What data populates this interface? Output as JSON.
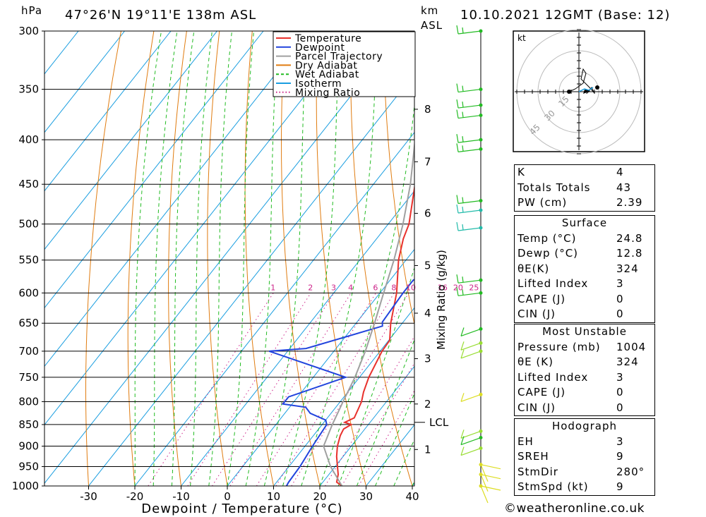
{
  "header": {
    "pressure_unit": "hPa",
    "location": "47°26'N  19°11'E  138m  ASL",
    "height_unit_line1": "km",
    "height_unit_line2": "ASL",
    "datetime": "10.10.2021  12GMT  (Base: 12)"
  },
  "axes": {
    "xlabel": "Dewpoint / Temperature (°C)",
    "mixing_axis_label": "Mixing Ratio (g/kg)",
    "x_ticks": [
      "-30",
      "-20",
      "-10",
      "0",
      "10",
      "20",
      "30",
      "40"
    ],
    "x_tick_values": [
      -30,
      -20,
      -10,
      0,
      10,
      20,
      30,
      40
    ],
    "p_ticks": [
      300,
      350,
      400,
      450,
      500,
      550,
      600,
      650,
      700,
      750,
      800,
      850,
      900,
      950,
      1000
    ],
    "km_ticks": [
      {
        "label": "8",
        "p": 369
      },
      {
        "label": "7",
        "p": 424
      },
      {
        "label": "6",
        "p": 486
      },
      {
        "label": "5",
        "p": 558
      },
      {
        "label": "4",
        "p": 633
      },
      {
        "label": "3",
        "p": 714
      },
      {
        "label": "2",
        "p": 805
      },
      {
        "label": "1",
        "p": 908
      }
    ],
    "lcl_label": "LCL",
    "lcl_p": 845,
    "mixing_ratio_labels": [
      "1",
      "2",
      "3",
      "4",
      "6",
      "8",
      "10",
      "16",
      "20",
      "25"
    ],
    "mixing_ratio_values": [
      1,
      2,
      3,
      4,
      6,
      8,
      10,
      16,
      20,
      25
    ]
  },
  "legend": {
    "items": [
      {
        "label": "Temperature",
        "color": "#e8312c",
        "style": "solid"
      },
      {
        "label": "Dewpoint",
        "color": "#2244dd",
        "style": "solid"
      },
      {
        "label": "Parcel Trajectory",
        "color": "#a0a0a0",
        "style": "solid"
      },
      {
        "label": "Dry Adiabat",
        "color": "#e07c10",
        "style": "solid"
      },
      {
        "label": "Wet Adiabat",
        "color": "#22bb22",
        "style": "dashed"
      },
      {
        "label": "Isotherm",
        "color": "#1a9ee0",
        "style": "solid"
      },
      {
        "label": "Mixing Ratio",
        "color": "#cc2288",
        "style": "dotted"
      }
    ]
  },
  "chart_data": {
    "type": "line",
    "title": "47°26'N  19°11'E  138m  ASL",
    "xlabel": "Dewpoint / Temperature (°C)",
    "ylabel": "hPa",
    "xlim": [
      -40,
      40
    ],
    "ylim": [
      1000,
      300
    ],
    "yscale": "log",
    "series": [
      {
        "name": "Temperature",
        "color": "#e8312c",
        "points": [
          [
            1000,
            24.8
          ],
          [
            990,
            23
          ],
          [
            970,
            22
          ],
          [
            950,
            20.5
          ],
          [
            925,
            18.6
          ],
          [
            900,
            17
          ],
          [
            875,
            15.8
          ],
          [
            860,
            15.4
          ],
          [
            850,
            16.3
          ],
          [
            845,
            14.5
          ],
          [
            835,
            15.8
          ],
          [
            800,
            14.6
          ],
          [
            780,
            13.4
          ],
          [
            750,
            12
          ],
          [
            700,
            10.4
          ],
          [
            680,
            10.2
          ],
          [
            650,
            7.5
          ],
          [
            600,
            3.6
          ],
          [
            550,
            -1.6
          ],
          [
            520,
            -4.2
          ],
          [
            500,
            -5.5
          ],
          [
            450,
            -11
          ],
          [
            400,
            -17.8
          ],
          [
            380,
            -20.5
          ],
          [
            350,
            -25
          ],
          [
            300,
            -33.5
          ]
        ]
      },
      {
        "name": "Dewpoint",
        "color": "#2244dd",
        "points": [
          [
            1000,
            12.8
          ],
          [
            990,
            12.6
          ],
          [
            950,
            12.4
          ],
          [
            900,
            11.6
          ],
          [
            850,
            11
          ],
          [
            840,
            10
          ],
          [
            825,
            5.5
          ],
          [
            812,
            3.5
          ],
          [
            805,
            -2
          ],
          [
            790,
            -2
          ],
          [
            750,
            7
          ],
          [
            700,
            -14
          ],
          [
            695,
            -6.5
          ],
          [
            655,
            6.2
          ],
          [
            648,
            5.5
          ],
          [
            600,
            5
          ],
          [
            580,
            5
          ],
          [
            555,
            8.5
          ],
          [
            535,
            9
          ],
          [
            522,
            1.5
          ],
          [
            510,
            5.5
          ],
          [
            500,
            3.8
          ],
          [
            475,
            2.5
          ],
          [
            470,
            2
          ],
          [
            465,
            -4.5
          ],
          [
            450,
            -5
          ],
          [
            430,
            -6
          ],
          [
            405,
            -3.3
          ],
          [
            395,
            -7
          ],
          [
            375,
            -8
          ],
          [
            360,
            -12
          ],
          [
            340,
            -12
          ],
          [
            320,
            -11
          ],
          [
            300,
            -17.5
          ]
        ]
      },
      {
        "name": "Parcel Trajectory",
        "color": "#a0a0a0",
        "points": [
          [
            1000,
            24.8
          ],
          [
            950,
            19
          ],
          [
            900,
            14
          ],
          [
            850,
            12.2
          ],
          [
            800,
            10.6
          ],
          [
            750,
            9
          ],
          [
            700,
            6.8
          ],
          [
            650,
            4
          ],
          [
            600,
            0.8
          ],
          [
            550,
            -2.6
          ],
          [
            500,
            -6.8
          ],
          [
            450,
            -12
          ],
          [
            400,
            -18.6
          ],
          [
            350,
            -26.8
          ],
          [
            300,
            -36
          ]
        ]
      }
    ]
  },
  "winds": [
    {
      "p": 300,
      "color": "#22bb22"
    },
    {
      "p": 350,
      "color": "#22bb22"
    },
    {
      "p": 365,
      "color": "#22bb22"
    },
    {
      "p": 375,
      "color": "#22bb22"
    },
    {
      "p": 400,
      "color": "#22bb22"
    },
    {
      "p": 410,
      "color": "#22bb22"
    },
    {
      "p": 470,
      "color": "#22bb22"
    },
    {
      "p": 482,
      "color": "#22bbaa"
    },
    {
      "p": 505,
      "color": "#22bbaa"
    },
    {
      "p": 580,
      "color": "#22bb22"
    },
    {
      "p": 600,
      "color": "#22bb22"
    },
    {
      "p": 660,
      "color": "#22bb22"
    },
    {
      "p": 685,
      "color": "#99dd33"
    },
    {
      "p": 700,
      "color": "#99dd33"
    },
    {
      "p": 785,
      "color": "#dddd22"
    },
    {
      "p": 865,
      "color": "#99dd33"
    },
    {
      "p": 880,
      "color": "#22bb22"
    },
    {
      "p": 905,
      "color": "#99dd33"
    },
    {
      "p": 945,
      "color": "#dddd22"
    },
    {
      "p": 970,
      "color": "#dddd22"
    },
    {
      "p": 1000,
      "color": "#dddd22"
    }
  ],
  "hodograph": {
    "unit": "kt",
    "ring_labels": [
      "15",
      "30",
      "45"
    ]
  },
  "stats": {
    "indices": [
      {
        "key": "K",
        "value": "4"
      },
      {
        "key": "Totals Totals",
        "value": "43"
      },
      {
        "key": "PW (cm)",
        "value": "2.39"
      }
    ],
    "surface_title": "Surface",
    "surface": [
      {
        "key": "Temp (°C)",
        "value": "24.8"
      },
      {
        "key": "Dewp (°C)",
        "value": "12.8"
      },
      {
        "key": "θE(K)",
        "value": "324"
      },
      {
        "key": "Lifted Index",
        "value": "3"
      },
      {
        "key": "CAPE (J)",
        "value": "0"
      },
      {
        "key": "CIN (J)",
        "value": "0"
      }
    ],
    "mu_title": "Most Unstable",
    "most_unstable": [
      {
        "key": "Pressure (mb)",
        "value": "1004"
      },
      {
        "key": "θE (K)",
        "value": "324"
      },
      {
        "key": "Lifted Index",
        "value": "3"
      },
      {
        "key": "CAPE (J)",
        "value": "0"
      },
      {
        "key": "CIN (J)",
        "value": "0"
      }
    ],
    "hodo_title": "Hodograph",
    "hodograph": [
      {
        "key": "EH",
        "value": "3"
      },
      {
        "key": "SREH",
        "value": "9"
      },
      {
        "key": "StmDir",
        "value": "280°"
      },
      {
        "key": "StmSpd (kt)",
        "value": "9"
      }
    ]
  },
  "footer": {
    "copyright": "©weatheronline.co.uk"
  }
}
